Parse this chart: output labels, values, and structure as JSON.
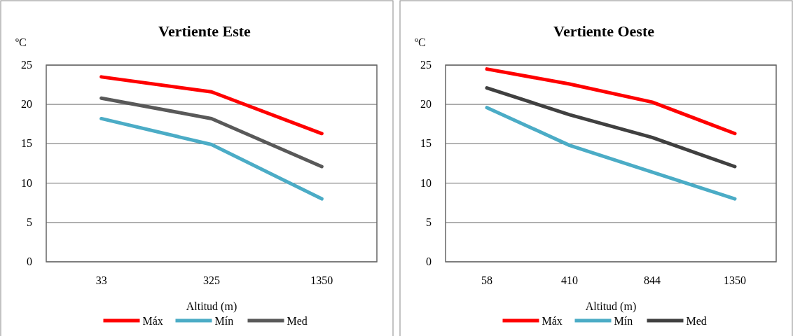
{
  "chart_data": [
    {
      "type": "line",
      "title": "Vertiente Este",
      "xlabel": "Altitud (m)",
      "ylabel": "ºC",
      "categories": [
        "33",
        "325",
        "1350"
      ],
      "series": [
        {
          "name": "Máx",
          "color": "#ff0000",
          "values": [
            23.5,
            21.6,
            16.3
          ]
        },
        {
          "name": "Mín",
          "color": "#4bacc6",
          "values": [
            18.2,
            14.9,
            8.0
          ]
        },
        {
          "name": "Med",
          "color": "#595959",
          "values": [
            20.8,
            18.2,
            12.1
          ]
        }
      ],
      "ylim": [
        0,
        25
      ],
      "yticks": [
        0,
        5,
        10,
        15,
        20,
        25
      ],
      "grid": "y",
      "legend": "bottom"
    },
    {
      "type": "line",
      "title": "Vertiente Oeste",
      "xlabel": "Altitud (m)",
      "ylabel": "ºC",
      "categories": [
        "58",
        "410",
        "844",
        "1350"
      ],
      "series": [
        {
          "name": "Máx",
          "color": "#ff0000",
          "values": [
            24.5,
            22.6,
            20.3,
            16.3
          ]
        },
        {
          "name": "Mín",
          "color": "#4bacc6",
          "values": [
            19.6,
            14.8,
            11.4,
            8.0
          ]
        },
        {
          "name": "Med",
          "color": "#404040",
          "values": [
            22.1,
            18.7,
            15.8,
            12.1
          ]
        }
      ],
      "ylim": [
        0,
        25
      ],
      "yticks": [
        0,
        5,
        10,
        15,
        20,
        25
      ],
      "grid": "y",
      "legend": "bottom"
    }
  ]
}
